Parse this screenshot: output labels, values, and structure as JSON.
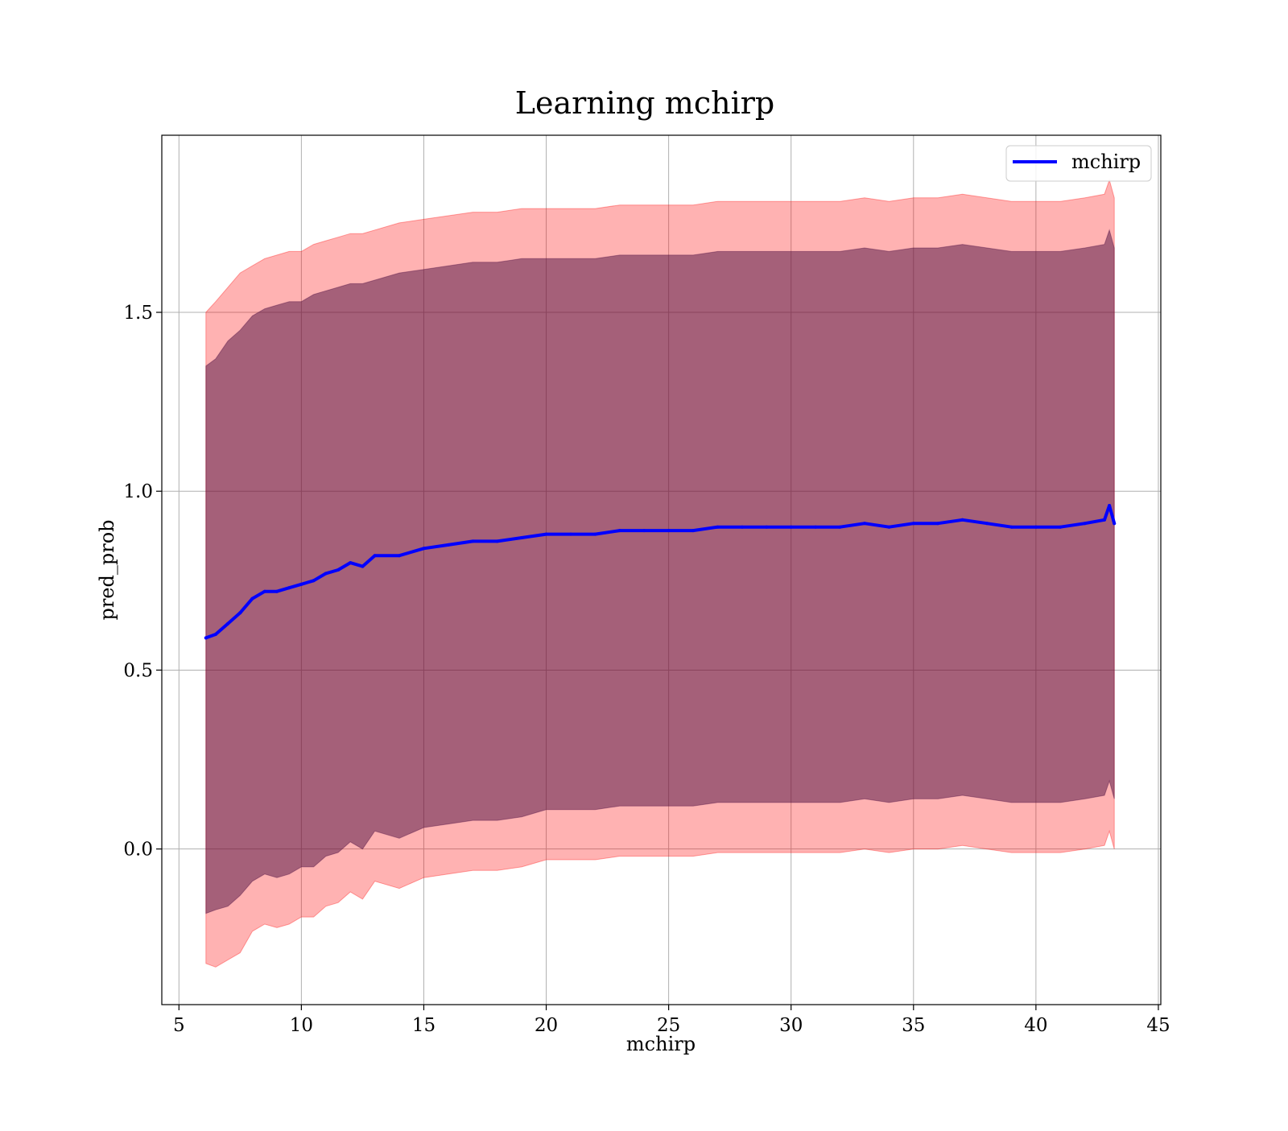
{
  "chart_data": {
    "type": "line",
    "title": "Learning mchirp",
    "xlabel": "mchirp",
    "ylabel": "pred_prob",
    "xlim": [
      4.3,
      45.1
    ],
    "ylim": [
      -0.435,
      1.995
    ],
    "xticks": [
      5,
      10,
      15,
      20,
      25,
      30,
      35,
      40,
      45
    ],
    "xtick_labels": [
      "5",
      "10",
      "15",
      "20",
      "25",
      "30",
      "35",
      "40",
      "45"
    ],
    "yticks": [
      0.0,
      0.5,
      1.0,
      1.5
    ],
    "ytick_labels": [
      "0.0",
      "0.5",
      "1.0",
      "1.5"
    ],
    "grid": true,
    "legend": {
      "position": "top-right",
      "entries": [
        "mchirp"
      ]
    },
    "colors": {
      "line": "#0000ff",
      "outer_band": "#ff0000",
      "inner_band": "#4b0d40",
      "grid": "#b0b0b0"
    },
    "series": [
      {
        "name": "mchirp",
        "x": [
          6.1,
          6.5,
          7.0,
          7.5,
          8.0,
          8.5,
          9.0,
          9.5,
          10.0,
          10.5,
          11.0,
          11.5,
          12.0,
          12.5,
          13.0,
          14.0,
          15.0,
          16.0,
          17.0,
          18.0,
          19.0,
          20.0,
          21.0,
          22.0,
          23.0,
          24.0,
          25.0,
          26.0,
          27.0,
          28.0,
          29.0,
          30.0,
          31.0,
          32.0,
          33.0,
          34.0,
          35.0,
          36.0,
          37.0,
          38.0,
          39.0,
          40.0,
          41.0,
          42.0,
          42.8,
          43.0,
          43.2
        ],
        "y": [
          0.59,
          0.6,
          0.63,
          0.66,
          0.7,
          0.72,
          0.72,
          0.73,
          0.74,
          0.75,
          0.77,
          0.78,
          0.8,
          0.79,
          0.82,
          0.82,
          0.84,
          0.85,
          0.86,
          0.86,
          0.87,
          0.88,
          0.88,
          0.88,
          0.89,
          0.89,
          0.89,
          0.89,
          0.9,
          0.9,
          0.9,
          0.9,
          0.9,
          0.9,
          0.91,
          0.9,
          0.91,
          0.91,
          0.92,
          0.91,
          0.9,
          0.9,
          0.9,
          0.91,
          0.92,
          0.96,
          0.91
        ],
        "outer_band": {
          "upper": [
            1.5,
            1.53,
            1.57,
            1.61,
            1.63,
            1.65,
            1.66,
            1.67,
            1.67,
            1.69,
            1.7,
            1.71,
            1.72,
            1.72,
            1.73,
            1.75,
            1.76,
            1.77,
            1.78,
            1.78,
            1.79,
            1.79,
            1.79,
            1.79,
            1.8,
            1.8,
            1.8,
            1.8,
            1.81,
            1.81,
            1.81,
            1.81,
            1.81,
            1.81,
            1.82,
            1.81,
            1.82,
            1.82,
            1.83,
            1.82,
            1.81,
            1.81,
            1.81,
            1.82,
            1.83,
            1.87,
            1.82
          ],
          "lower": [
            -0.32,
            -0.33,
            -0.31,
            -0.29,
            -0.23,
            -0.21,
            -0.22,
            -0.21,
            -0.19,
            -0.19,
            -0.16,
            -0.15,
            -0.12,
            -0.14,
            -0.09,
            -0.11,
            -0.08,
            -0.07,
            -0.06,
            -0.06,
            -0.05,
            -0.03,
            -0.03,
            -0.03,
            -0.02,
            -0.02,
            -0.02,
            -0.02,
            -0.01,
            -0.01,
            -0.01,
            -0.01,
            -0.01,
            -0.01,
            0.0,
            -0.01,
            0.0,
            0.0,
            0.01,
            0.0,
            -0.01,
            -0.01,
            -0.01,
            0.0,
            0.01,
            0.05,
            0.0
          ]
        },
        "inner_band": {
          "upper": [
            1.35,
            1.37,
            1.42,
            1.45,
            1.49,
            1.51,
            1.52,
            1.53,
            1.53,
            1.55,
            1.56,
            1.57,
            1.58,
            1.58,
            1.59,
            1.61,
            1.62,
            1.63,
            1.64,
            1.64,
            1.65,
            1.65,
            1.65,
            1.65,
            1.66,
            1.66,
            1.66,
            1.66,
            1.67,
            1.67,
            1.67,
            1.67,
            1.67,
            1.67,
            1.68,
            1.67,
            1.68,
            1.68,
            1.69,
            1.68,
            1.67,
            1.67,
            1.67,
            1.68,
            1.69,
            1.73,
            1.68
          ],
          "lower": [
            -0.18,
            -0.17,
            -0.16,
            -0.13,
            -0.09,
            -0.07,
            -0.08,
            -0.07,
            -0.05,
            -0.05,
            -0.02,
            -0.01,
            0.02,
            0.0,
            0.05,
            0.03,
            0.06,
            0.07,
            0.08,
            0.08,
            0.09,
            0.11,
            0.11,
            0.11,
            0.12,
            0.12,
            0.12,
            0.12,
            0.13,
            0.13,
            0.13,
            0.13,
            0.13,
            0.13,
            0.14,
            0.13,
            0.14,
            0.14,
            0.15,
            0.14,
            0.13,
            0.13,
            0.13,
            0.14,
            0.15,
            0.19,
            0.14
          ]
        }
      }
    ]
  }
}
